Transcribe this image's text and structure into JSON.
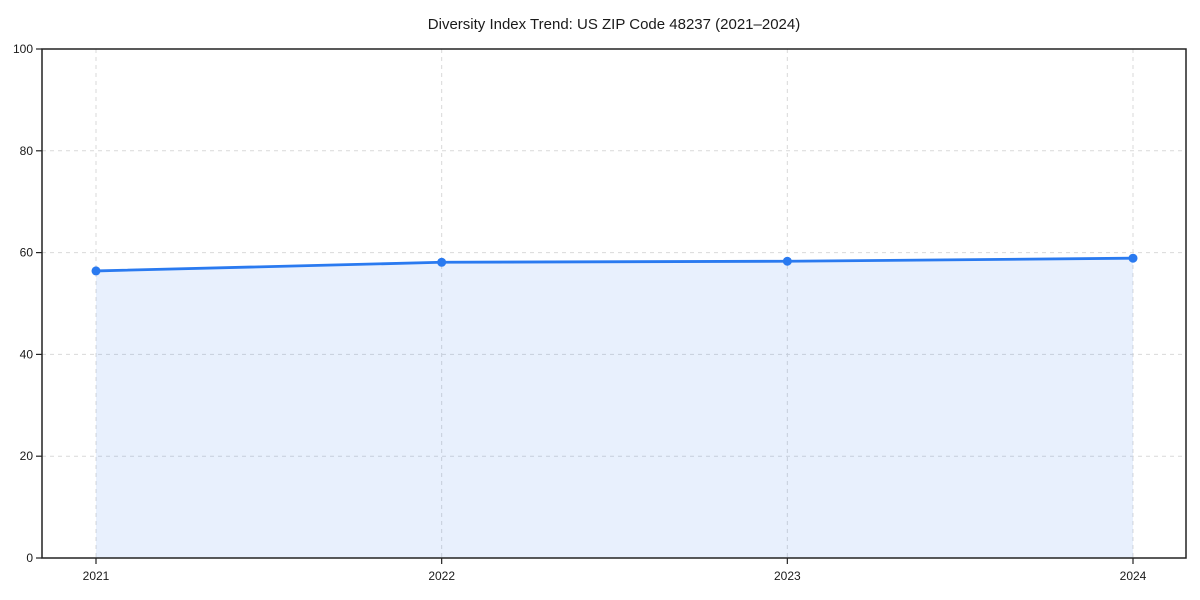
{
  "chart_data": {
    "type": "line",
    "title": "Diversity Index Trend: US ZIP Code 48237 (2021–2024)",
    "categories": [
      "2021",
      "2022",
      "2023",
      "2024"
    ],
    "series": [
      {
        "name": "Diversity Index",
        "values": [
          56.4,
          58.1,
          58.3,
          58.9
        ]
      }
    ],
    "xlabel": "",
    "ylabel": "",
    "ylim": [
      0,
      100
    ],
    "yticks": [
      0,
      20,
      40,
      60,
      80,
      100
    ],
    "grid": true,
    "grid_style": "dashed",
    "legend": "none",
    "area_fill": true,
    "colors": {
      "line": "#2a7af0",
      "marker": "#2a7af0",
      "fill": "rgba(42,122,240,0.11)",
      "grid": "#d9d9d9",
      "axis": "#222222",
      "background": "#ffffff"
    }
  }
}
